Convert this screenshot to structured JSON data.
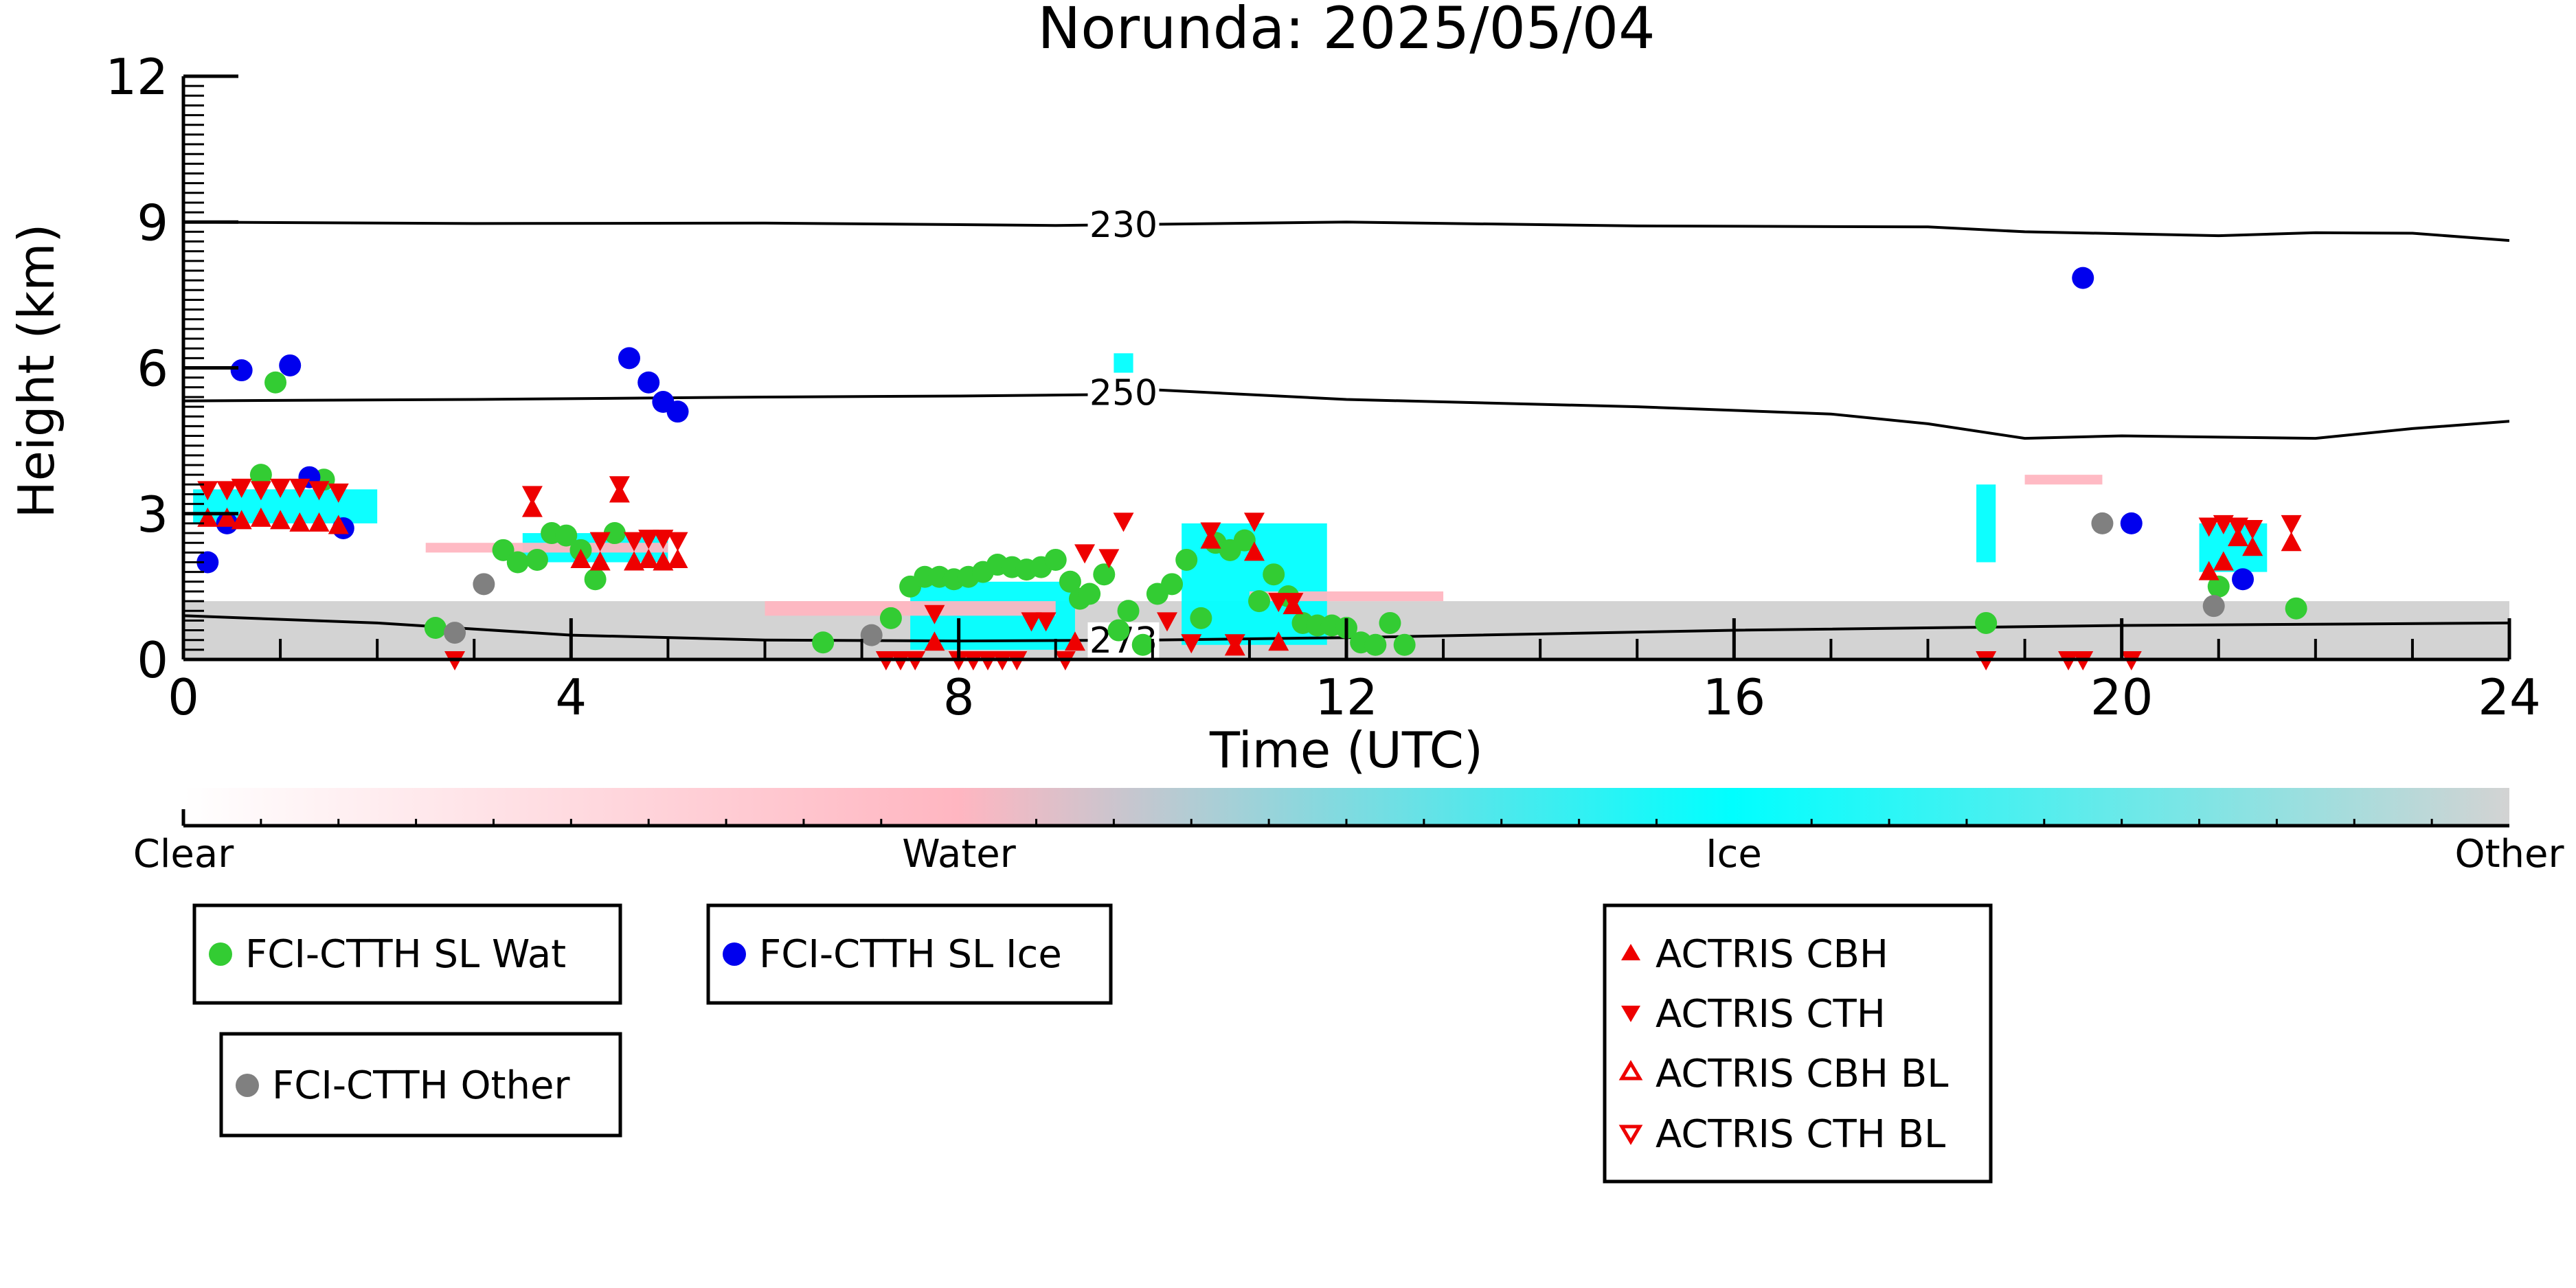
{
  "chart_data": {
    "type": "scatter",
    "title": "Norunda: 2025/05/04",
    "xlabel": "Time (UTC)",
    "ylabel": "Height (km)",
    "xlim": [
      0,
      24
    ],
    "ylim": [
      0,
      12
    ],
    "x_ticks": [
      0,
      4,
      8,
      12,
      16,
      20,
      24
    ],
    "y_ticks": [
      0,
      3,
      6,
      9,
      12
    ],
    "x_tick_labels": [
      "0",
      "4",
      "8",
      "12",
      "16",
      "20",
      "24"
    ],
    "y_tick_labels": [
      "0",
      "3",
      "6",
      "9",
      "12"
    ],
    "colorbar": {
      "labels": [
        "Clear",
        "Water",
        "Ice",
        "Other"
      ],
      "colors": [
        "#ffffff",
        "#ffb6c1",
        "#00ffff",
        "#d3d3d3"
      ]
    },
    "temperature_contours": [
      {
        "label": "230",
        "label_x": 9.7,
        "points": [
          [
            0,
            9.0
          ],
          [
            3,
            8.97
          ],
          [
            6,
            8.98
          ],
          [
            9,
            8.93
          ],
          [
            12,
            9.0
          ],
          [
            15,
            8.92
          ],
          [
            18,
            8.9
          ],
          [
            19,
            8.8
          ],
          [
            21,
            8.72
          ],
          [
            22,
            8.78
          ],
          [
            23,
            8.77
          ],
          [
            24,
            8.62
          ]
        ]
      },
      {
        "label": "250",
        "label_x": 9.7,
        "points": [
          [
            0,
            5.32
          ],
          [
            3,
            5.35
          ],
          [
            6,
            5.4
          ],
          [
            8,
            5.42
          ],
          [
            9.5,
            5.45
          ],
          [
            10,
            5.55
          ],
          [
            12,
            5.35
          ],
          [
            15,
            5.2
          ],
          [
            17,
            5.05
          ],
          [
            18,
            4.85
          ],
          [
            19,
            4.55
          ],
          [
            20,
            4.6
          ],
          [
            22,
            4.55
          ],
          [
            23,
            4.75
          ],
          [
            24,
            4.9
          ]
        ]
      },
      {
        "label": "273",
        "label_x": 9.7,
        "points": [
          [
            0,
            0.9
          ],
          [
            2,
            0.75
          ],
          [
            4,
            0.5
          ],
          [
            6,
            0.4
          ],
          [
            8,
            0.38
          ],
          [
            10,
            0.4
          ],
          [
            12,
            0.45
          ],
          [
            16,
            0.6
          ],
          [
            20,
            0.7
          ],
          [
            24,
            0.75
          ]
        ]
      }
    ],
    "cloudnet_patches": [
      {
        "category": "Other",
        "x": [
          0,
          24
        ],
        "y": [
          0,
          1.2
        ]
      },
      {
        "category": "Ice",
        "x": [
          0.1,
          2.0
        ],
        "y": [
          2.8,
          3.5
        ]
      },
      {
        "category": "Ice",
        "x": [
          3.5,
          5.0
        ],
        "y": [
          2.0,
          2.6
        ]
      },
      {
        "category": "Ice",
        "x": [
          7.5,
          9.2
        ],
        "y": [
          0.2,
          1.6
        ]
      },
      {
        "category": "Ice",
        "x": [
          9.6,
          9.8
        ],
        "y": [
          5.9,
          6.3
        ]
      },
      {
        "category": "Ice",
        "x": [
          10.3,
          11.8
        ],
        "y": [
          0.3,
          2.8
        ]
      },
      {
        "category": "Ice",
        "x": [
          18.5,
          18.7
        ],
        "y": [
          2.0,
          3.6
        ]
      },
      {
        "category": "Ice",
        "x": [
          20.8,
          21.5
        ],
        "y": [
          1.8,
          2.8
        ]
      },
      {
        "category": "Water",
        "x": [
          2.5,
          5.0
        ],
        "y": [
          2.2,
          2.4
        ]
      },
      {
        "category": "Water",
        "x": [
          6.0,
          9.0
        ],
        "y": [
          0.9,
          1.2
        ]
      },
      {
        "category": "Water",
        "x": [
          11.0,
          13.0
        ],
        "y": [
          1.2,
          1.4
        ]
      },
      {
        "category": "Water",
        "x": [
          19.0,
          19.8
        ],
        "y": [
          3.6,
          3.8
        ]
      }
    ],
    "series": [
      {
        "name": "FCI-CTTH SL Wat",
        "color": "#33cc33",
        "marker": "circle",
        "x": [
          0.8,
          0.95,
          1.45,
          2.6,
          3.3,
          3.45,
          3.65,
          3.8,
          3.95,
          4.1,
          4.25,
          4.45,
          6.6,
          7.3,
          7.5,
          7.65,
          7.8,
          7.95,
          8.1,
          8.25,
          8.4,
          8.55,
          8.7,
          8.85,
          9.0,
          9.15,
          9.25,
          9.35,
          9.5,
          9.65,
          9.75,
          9.9,
          10.05,
          10.2,
          10.35,
          10.5,
          10.65,
          10.8,
          10.95,
          11.1,
          11.25,
          11.4,
          11.55,
          11.7,
          11.85,
          12.0,
          12.15,
          12.3,
          12.45,
          12.6,
          18.6,
          21.0,
          21.8
        ],
        "y": [
          3.8,
          5.7,
          3.7,
          0.65,
          2.25,
          2.0,
          2.05,
          2.6,
          2.55,
          2.25,
          1.65,
          2.6,
          0.35,
          0.85,
          1.5,
          1.7,
          1.7,
          1.65,
          1.7,
          1.8,
          1.95,
          1.9,
          1.85,
          1.9,
          2.05,
          1.6,
          1.25,
          1.35,
          1.75,
          0.6,
          1.0,
          0.3,
          1.35,
          1.55,
          2.05,
          0.85,
          2.4,
          2.25,
          2.45,
          1.2,
          1.75,
          1.3,
          0.75,
          0.7,
          0.7,
          0.65,
          0.35,
          0.3,
          0.75,
          0.3,
          0.75,
          1.5,
          1.05
        ]
      },
      {
        "name": "FCI-CTTH SL Ice",
        "color": "#0000ee",
        "marker": "circle",
        "x": [
          0.25,
          0.45,
          0.6,
          1.1,
          1.3,
          1.65,
          4.6,
          4.8,
          4.95,
          5.1,
          19.6,
          20.1,
          21.25
        ],
        "y": [
          2.0,
          2.8,
          5.95,
          6.05,
          3.75,
          2.7,
          6.2,
          5.7,
          5.3,
          5.1,
          7.85,
          2.8,
          1.65
        ]
      },
      {
        "name": "FCI-CTTH Other",
        "color": "#808080",
        "marker": "circle",
        "x": [
          2.8,
          3.1,
          7.1,
          19.8,
          20.95
        ],
        "y": [
          0.55,
          1.55,
          0.5,
          2.8,
          1.1
        ]
      },
      {
        "name": "ACTRIS CBH",
        "color": "#ee0000",
        "marker": "triangle-up",
        "x": [
          0.25,
          0.45,
          0.6,
          0.8,
          1.0,
          1.2,
          1.4,
          1.6,
          3.6,
          4.1,
          4.3,
          4.5,
          4.65,
          4.8,
          4.95,
          5.1,
          7.75,
          9.2,
          10.6,
          10.85,
          11.05,
          11.3,
          11.45,
          20.9,
          21.05,
          21.2,
          21.35,
          21.75
        ],
        "y": [
          2.9,
          2.9,
          2.85,
          2.9,
          2.85,
          2.8,
          2.8,
          2.75,
          3.1,
          2.05,
          2.0,
          3.4,
          2.0,
          2.05,
          2.0,
          2.05,
          0.35,
          0.35,
          2.45,
          0.25,
          2.2,
          0.35,
          1.1,
          1.8,
          2.0,
          2.5,
          2.3,
          2.4
        ]
      },
      {
        "name": "ACTRIS CTH",
        "color": "#ee0000",
        "marker": "triangle-down",
        "x": [
          0.25,
          0.45,
          0.6,
          0.8,
          1.0,
          1.2,
          1.4,
          1.6,
          2.8,
          3.6,
          4.3,
          4.5,
          4.65,
          4.8,
          4.95,
          5.1,
          7.25,
          7.4,
          7.55,
          7.75,
          8.0,
          8.15,
          8.3,
          8.45,
          8.6,
          8.75,
          8.9,
          9.1,
          9.3,
          9.55,
          9.7,
          10.15,
          10.4,
          10.6,
          10.85,
          11.05,
          11.3,
          11.45,
          18.6,
          19.45,
          19.6,
          20.1,
          20.9,
          21.05,
          21.2,
          21.35,
          21.75
        ],
        "y": [
          3.5,
          3.5,
          3.55,
          3.5,
          3.55,
          3.55,
          3.5,
          3.45,
          0.0,
          3.4,
          2.45,
          3.6,
          2.45,
          2.5,
          2.5,
          2.45,
          0.0,
          0.0,
          0.0,
          0.95,
          0.0,
          0.0,
          0.0,
          0.0,
          0.0,
          0.8,
          0.8,
          0.0,
          2.2,
          2.1,
          2.85,
          0.8,
          0.35,
          2.65,
          0.35,
          2.85,
          1.2,
          1.2,
          0.0,
          0.0,
          0.0,
          0.0,
          2.75,
          2.8,
          2.75,
          2.7,
          2.8
        ]
      }
    ]
  }
}
